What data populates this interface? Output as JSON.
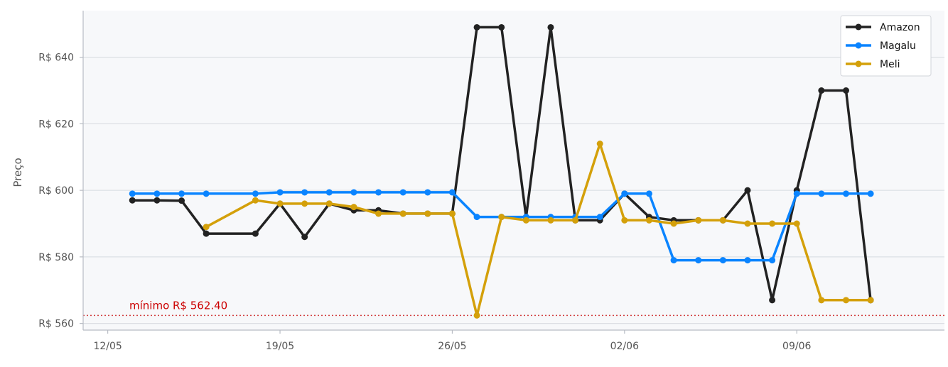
{
  "chart_data": {
    "type": "line",
    "title": "",
    "xlabel": "",
    "ylabel": "Preço",
    "x_ticks": [
      "12/05",
      "19/05",
      "26/05",
      "02/06",
      "09/06"
    ],
    "y_ticks": [
      "R$ 560",
      "R$ 580",
      "R$ 600",
      "R$ 620",
      "R$ 640"
    ],
    "y_tick_values": [
      560,
      580,
      600,
      620,
      640
    ],
    "xlim": [
      "11/05",
      "15/06"
    ],
    "ylim": [
      558,
      654
    ],
    "grid": "horizontal",
    "legend_position": "top-right",
    "series": [
      {
        "name": "Amazon",
        "color": "#222222",
        "points": [
          {
            "x": "13/05",
            "y": 597
          },
          {
            "x": "14/05",
            "y": 597
          },
          {
            "x": "15/05",
            "y": 596.9
          },
          {
            "x": "16/05",
            "y": 587
          },
          {
            "x": "18/05",
            "y": 587
          },
          {
            "x": "19/05",
            "y": 596
          },
          {
            "x": "20/05",
            "y": 586
          },
          {
            "x": "21/05",
            "y": 596
          },
          {
            "x": "22/05",
            "y": 594
          },
          {
            "x": "23/05",
            "y": 594
          },
          {
            "x": "24/05",
            "y": 593
          },
          {
            "x": "25/05",
            "y": 593
          },
          {
            "x": "26/05",
            "y": 593
          },
          {
            "x": "27/05",
            "y": 649
          },
          {
            "x": "28/05",
            "y": 649
          },
          {
            "x": "29/05",
            "y": 592
          },
          {
            "x": "30/05",
            "y": 649
          },
          {
            "x": "31/05",
            "y": 591
          },
          {
            "x": "01/06",
            "y": 591
          },
          {
            "x": "02/06",
            "y": 599
          },
          {
            "x": "03/06",
            "y": 592
          },
          {
            "x": "04/06",
            "y": 591
          },
          {
            "x": "05/06",
            "y": 591
          },
          {
            "x": "06/06",
            "y": 591
          },
          {
            "x": "07/06",
            "y": 600
          },
          {
            "x": "08/06",
            "y": 567
          },
          {
            "x": "09/06",
            "y": 600
          },
          {
            "x": "10/06",
            "y": 630
          },
          {
            "x": "11/06",
            "y": 630
          },
          {
            "x": "12/06",
            "y": 567
          }
        ]
      },
      {
        "name": "Magalu",
        "color": "#0a84ff",
        "points": [
          {
            "x": "13/05",
            "y": 599
          },
          {
            "x": "14/05",
            "y": 599
          },
          {
            "x": "15/05",
            "y": 599
          },
          {
            "x": "16/05",
            "y": 599
          },
          {
            "x": "18/05",
            "y": 599
          },
          {
            "x": "19/05",
            "y": 599.4
          },
          {
            "x": "20/05",
            "y": 599.4
          },
          {
            "x": "21/05",
            "y": 599.4
          },
          {
            "x": "22/05",
            "y": 599.4
          },
          {
            "x": "23/05",
            "y": 599.4
          },
          {
            "x": "24/05",
            "y": 599.4
          },
          {
            "x": "25/05",
            "y": 599.4
          },
          {
            "x": "26/05",
            "y": 599.4
          },
          {
            "x": "27/05",
            "y": 592
          },
          {
            "x": "28/05",
            "y": 592
          },
          {
            "x": "29/05",
            "y": 592
          },
          {
            "x": "30/05",
            "y": 592
          },
          {
            "x": "31/05",
            "y": 592
          },
          {
            "x": "01/06",
            "y": 592
          },
          {
            "x": "02/06",
            "y": 599
          },
          {
            "x": "03/06",
            "y": 599
          },
          {
            "x": "04/06",
            "y": 579
          },
          {
            "x": "05/06",
            "y": 579
          },
          {
            "x": "06/06",
            "y": 579
          },
          {
            "x": "07/06",
            "y": 579
          },
          {
            "x": "08/06",
            "y": 579
          },
          {
            "x": "09/06",
            "y": 599
          },
          {
            "x": "10/06",
            "y": 599
          },
          {
            "x": "11/06",
            "y": 599
          },
          {
            "x": "12/06",
            "y": 599
          }
        ]
      },
      {
        "name": "Meli",
        "color": "#d4a00a",
        "points": [
          {
            "x": "16/05",
            "y": 589
          },
          {
            "x": "18/05",
            "y": 597
          },
          {
            "x": "19/05",
            "y": 596
          },
          {
            "x": "20/05",
            "y": 596
          },
          {
            "x": "21/05",
            "y": 596
          },
          {
            "x": "22/05",
            "y": 595
          },
          {
            "x": "23/05",
            "y": 593
          },
          {
            "x": "24/05",
            "y": 593
          },
          {
            "x": "25/05",
            "y": 593
          },
          {
            "x": "26/05",
            "y": 593
          },
          {
            "x": "27/05",
            "y": 562.4
          },
          {
            "x": "28/05",
            "y": 592
          },
          {
            "x": "29/05",
            "y": 591
          },
          {
            "x": "30/05",
            "y": 591
          },
          {
            "x": "31/05",
            "y": 591
          },
          {
            "x": "01/06",
            "y": 614
          },
          {
            "x": "02/06",
            "y": 591
          },
          {
            "x": "03/06",
            "y": 591
          },
          {
            "x": "04/06",
            "y": 590
          },
          {
            "x": "05/06",
            "y": 591
          },
          {
            "x": "06/06",
            "y": 591
          },
          {
            "x": "07/06",
            "y": 590
          },
          {
            "x": "08/06",
            "y": 590
          },
          {
            "x": "09/06",
            "y": 590
          },
          {
            "x": "10/06",
            "y": 567
          },
          {
            "x": "11/06",
            "y": 567
          },
          {
            "x": "12/06",
            "y": 567
          }
        ]
      }
    ],
    "reference_line": {
      "value": 562.4,
      "label": "mínimo R$ 562.40",
      "color": "#cc2222"
    }
  }
}
